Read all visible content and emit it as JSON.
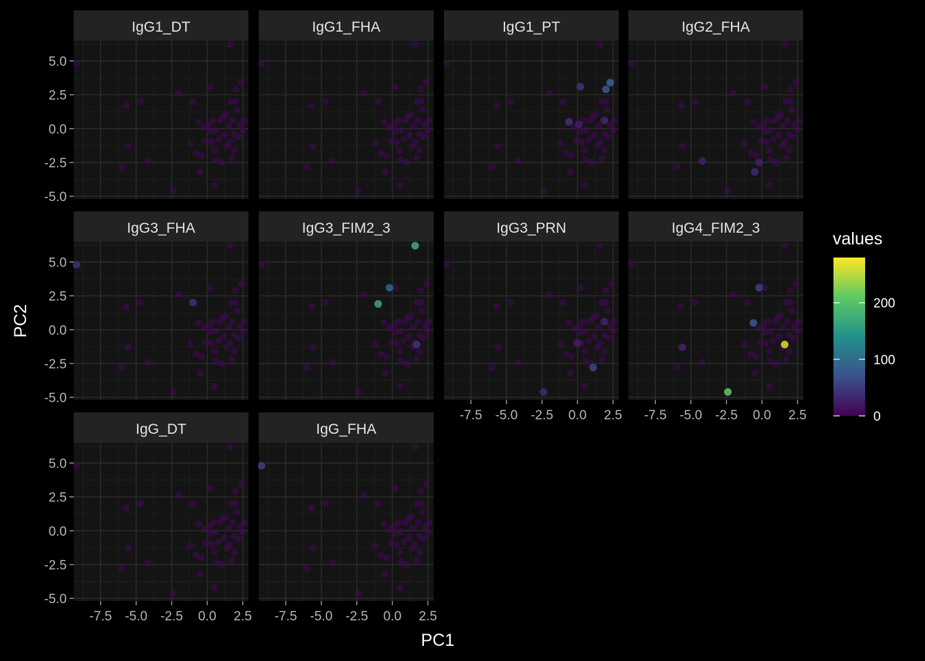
{
  "chart_data": {
    "type": "scatter",
    "layout": "facet_wrap",
    "xlabel": "PC1",
    "ylabel": "PC2",
    "xlim": [
      -9.4,
      2.9
    ],
    "ylim": [
      -5.2,
      6.5
    ],
    "x_ticks": [
      -7.5,
      -5.0,
      -2.5,
      0.0,
      2.5
    ],
    "x_tick_labels": [
      "-7.5",
      "-5.0",
      "-2.5",
      "0.0",
      "2.5"
    ],
    "y_ticks": [
      -5.0,
      -2.5,
      0.0,
      2.5,
      5.0
    ],
    "y_tick_labels": [
      "-5.0",
      "-2.5",
      "0.0",
      "2.5",
      "5.0"
    ],
    "grid": true,
    "background": "#000000",
    "panel_color": "#141414",
    "strip_color": "#232323",
    "grid_color": "#262626",
    "legend": {
      "title": "values",
      "position": "right",
      "colormap": "viridis",
      "range": [
        0,
        280
      ],
      "ticks": [
        0,
        100,
        200
      ],
      "tick_labels": [
        "0",
        "100",
        "200"
      ],
      "colors": [
        "#440154",
        "#3b528b",
        "#21918c",
        "#5ec962",
        "#fde725"
      ]
    },
    "points": [
      [
        -9.2,
        4.8
      ],
      [
        -6.0,
        -2.8
      ],
      [
        -5.7,
        1.7
      ],
      [
        -5.6,
        -1.3
      ],
      [
        -4.7,
        2.0
      ],
      [
        -4.2,
        -2.4
      ],
      [
        -2.4,
        -4.6
      ],
      [
        -2.0,
        2.6
      ],
      [
        -1.0,
        2.0
      ],
      [
        -1.2,
        -1.1
      ],
      [
        -0.6,
        0.5
      ],
      [
        -0.5,
        -3.2
      ],
      [
        -0.4,
        -2.0
      ],
      [
        -0.2,
        0.1
      ],
      [
        0.1,
        0.3
      ],
      [
        0.2,
        -0.2
      ],
      [
        0.3,
        -1.0
      ],
      [
        0.5,
        -1.6
      ],
      [
        0.6,
        -2.3
      ],
      [
        0.8,
        -0.8
      ],
      [
        1.0,
        -2.5
      ],
      [
        0.9,
        0.6
      ],
      [
        1.2,
        -0.5
      ],
      [
        1.3,
        1.0
      ],
      [
        1.4,
        -1.3
      ],
      [
        1.5,
        0.2
      ],
      [
        1.6,
        -1.0
      ],
      [
        1.7,
        2.0
      ],
      [
        1.8,
        0.6
      ],
      [
        1.9,
        -0.4
      ],
      [
        2.0,
        2.9
      ],
      [
        2.1,
        1.4
      ],
      [
        2.2,
        -0.6
      ],
      [
        2.3,
        0.3
      ],
      [
        2.4,
        3.4
      ],
      [
        2.5,
        -0.1
      ],
      [
        2.6,
        0.6
      ],
      [
        1.6,
        6.2
      ],
      [
        0.2,
        3.1
      ],
      [
        0.5,
        -4.2
      ],
      [
        -0.8,
        -1.8
      ],
      [
        1.9,
        -1.6
      ],
      [
        0.6,
        -0.1
      ],
      [
        1.1,
        0.9
      ],
      [
        2.0,
        2.0
      ],
      [
        -0.1,
        -0.9
      ],
      [
        1.7,
        -2.2
      ],
      [
        0.4,
        0.6
      ]
    ],
    "panels": [
      {
        "name": "IgG1_DT",
        "highlights": []
      },
      {
        "name": "IgG1_FHA",
        "highlights": []
      },
      {
        "name": "IgG1_PT",
        "highlights": [
          {
            "x": 2.3,
            "y": 3.4,
            "value": 95
          },
          {
            "x": 2.0,
            "y": 2.9,
            "value": 80
          },
          {
            "x": 0.2,
            "y": 3.1,
            "value": 45
          },
          {
            "x": -0.6,
            "y": 0.5,
            "value": 40
          },
          {
            "x": 1.9,
            "y": 0.6,
            "value": 30
          },
          {
            "x": 0.1,
            "y": 0.3,
            "value": 25
          }
        ]
      },
      {
        "name": "IgG2_FHA",
        "highlights": [
          {
            "x": -0.5,
            "y": -3.2,
            "value": 35
          },
          {
            "x": -0.2,
            "y": -2.5,
            "value": 25
          },
          {
            "x": -4.2,
            "y": -2.4,
            "value": 25
          }
        ]
      },
      {
        "name": "IgG3_FHA",
        "highlights": [
          {
            "x": -9.2,
            "y": 4.8,
            "value": 40
          },
          {
            "x": -1.0,
            "y": 2.0,
            "value": 40
          }
        ]
      },
      {
        "name": "IgG3_FIM2_3",
        "highlights": [
          {
            "x": 1.6,
            "y": 6.2,
            "value": 175
          },
          {
            "x": -1.0,
            "y": 1.9,
            "value": 165
          },
          {
            "x": -0.2,
            "y": 3.1,
            "value": 90
          },
          {
            "x": 1.7,
            "y": -1.1,
            "value": 45
          }
        ]
      },
      {
        "name": "IgG3_PRN",
        "highlights": [
          {
            "x": 1.1,
            "y": -2.8,
            "value": 60
          },
          {
            "x": -2.4,
            "y": -4.6,
            "value": 35
          },
          {
            "x": 1.9,
            "y": 0.6,
            "value": 30
          },
          {
            "x": 0.0,
            "y": -1.0,
            "value": 25
          }
        ]
      },
      {
        "name": "IgG4_FIM2_3",
        "highlights": [
          {
            "x": -2.4,
            "y": -4.6,
            "value": 210
          },
          {
            "x": 1.6,
            "y": -1.1,
            "value": 265
          },
          {
            "x": -0.6,
            "y": 0.5,
            "value": 80
          },
          {
            "x": -0.2,
            "y": 3.1,
            "value": 55
          },
          {
            "x": -5.6,
            "y": -1.3,
            "value": 30
          }
        ]
      },
      {
        "name": "IgG_DT",
        "highlights": []
      },
      {
        "name": "IgG_FHA",
        "highlights": [
          {
            "x": -9.2,
            "y": 4.8,
            "value": 55
          }
        ]
      }
    ]
  }
}
